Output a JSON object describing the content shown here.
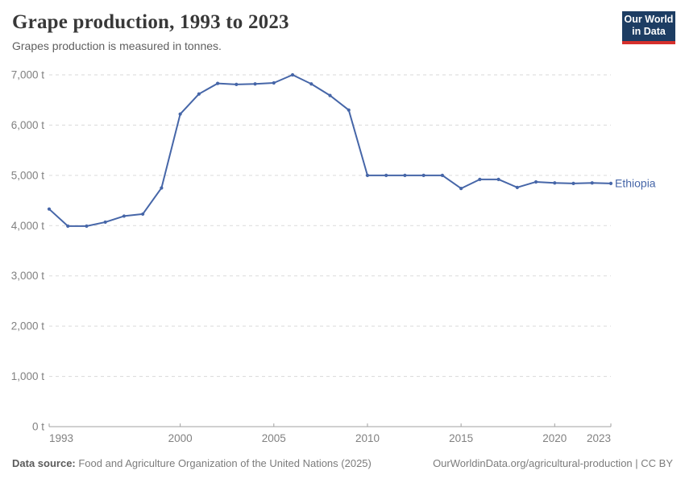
{
  "header": {
    "title": "Grape production, 1993 to 2023",
    "subtitle": "Grapes production is measured in tonnes."
  },
  "logo": {
    "line1": "Our World",
    "line2": "in Data",
    "bg_color": "#1d3d63",
    "accent_color": "#d6302c"
  },
  "chart_data": {
    "type": "line",
    "title": "Grape production, 1993 to 2023",
    "unit": "t",
    "grid": "horizontal-dashed",
    "legend_position": "end-of-line-label",
    "line_color": "#4666a8",
    "ylim": [
      0,
      7000
    ],
    "yticks": [
      0,
      1000,
      2000,
      3000,
      4000,
      5000,
      6000,
      7000
    ],
    "ytick_suffix": " t",
    "xticks": [
      1993,
      2000,
      2005,
      2010,
      2015,
      2020,
      2023
    ],
    "x": [
      1993,
      1994,
      1995,
      1996,
      1997,
      1998,
      1999,
      2000,
      2001,
      2002,
      2003,
      2004,
      2005,
      2006,
      2007,
      2008,
      2009,
      2010,
      2011,
      2012,
      2013,
      2014,
      2015,
      2016,
      2017,
      2018,
      2019,
      2020,
      2021,
      2022,
      2023
    ],
    "series": [
      {
        "name": "Ethiopia",
        "color": "#4666a8",
        "values": [
          4330,
          3990,
          3990,
          4070,
          4190,
          4230,
          4750,
          6220,
          6620,
          6830,
          6810,
          6820,
          6840,
          7000,
          6820,
          6590,
          6300,
          5000,
          5000,
          5000,
          5000,
          5000,
          4740,
          4920,
          4920,
          4760,
          4870,
          4850,
          4840,
          4850,
          4840
        ]
      }
    ]
  },
  "footer": {
    "datasource_label": "Data source:",
    "datasource_text": " Food and Agriculture Organization of the United Nations (2025)",
    "credit": "OurWorldinData.org/agricultural-production | CC BY"
  }
}
